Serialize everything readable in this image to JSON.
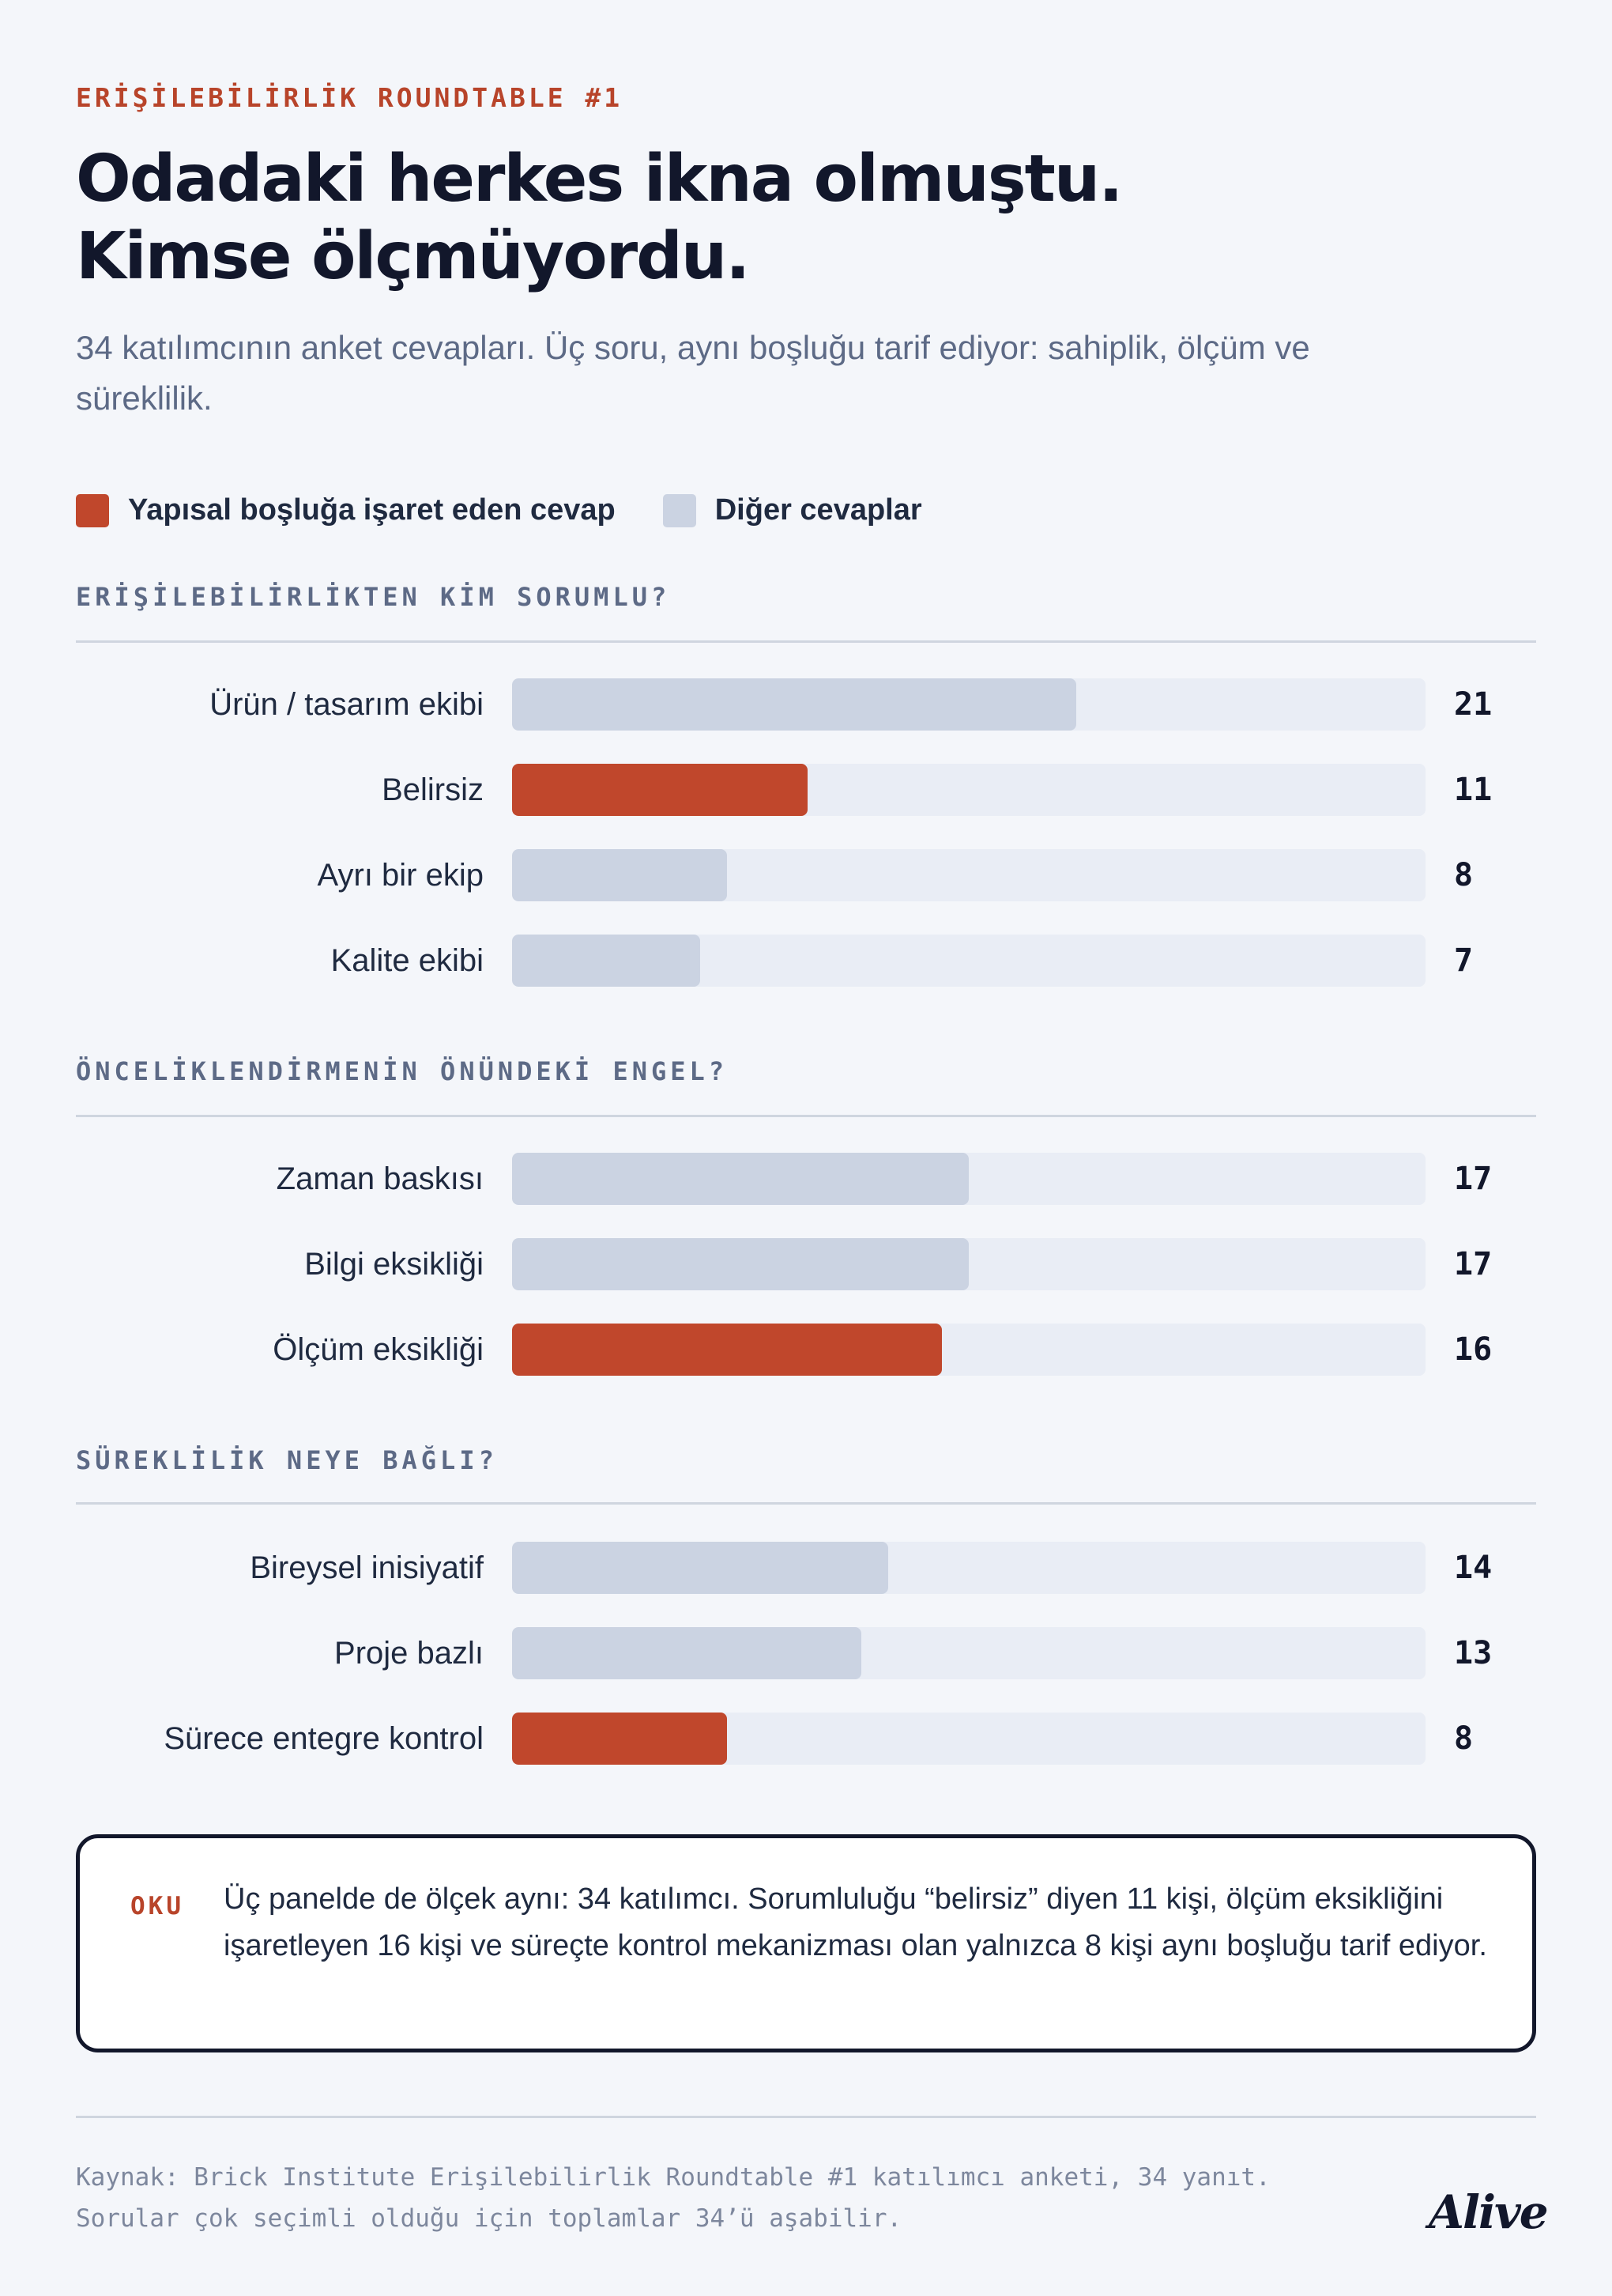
{
  "eyebrow": "ERİŞİLEBİLİRLİK ROUNDTABLE #1",
  "headline": [
    "Odadaki herkes ikna olmuştu.",
    "Kimse ölçmüyordu."
  ],
  "subtitle": "34 katılımcının anket cevapları. Üç soru, aynı boşluğu tarif ediyor: sahiplik, ölçüm ve süreklilik.",
  "legend": {
    "highlight": "Yapısal boşluğa işaret eden cevap",
    "other": "Diğer cevaplar"
  },
  "colors": {
    "highlight": "#c0472c",
    "other": "#cbd3e2",
    "track": "#e9edf5"
  },
  "chart_data": {
    "type": "bar",
    "orientation": "horizontal",
    "scale_max": 34,
    "panels": [
      {
        "title": "ERİŞİLEBİLİRLİKTEN KİM SORUMLU?",
        "categories": [
          "Ürün / tasarım ekibi",
          "Belirsiz",
          "Ayrı bir ekip",
          "Kalite ekibi"
        ],
        "values": [
          21,
          11,
          8,
          7
        ],
        "highlight": [
          false,
          true,
          false,
          false
        ]
      },
      {
        "title": "ÖNCELİKLENDİRMENİN ÖNÜNDEKİ ENGEL?",
        "categories": [
          "Zaman baskısı",
          "Bilgi eksikliği",
          "Ölçüm eksikliği"
        ],
        "values": [
          17,
          17,
          16
        ],
        "highlight": [
          false,
          false,
          true
        ]
      },
      {
        "title": "SÜREKLİLİK NEYE BAĞLI?",
        "categories": [
          "Bireysel inisiyatif",
          "Proje bazlı",
          "Sürece entegre kontrol"
        ],
        "values": [
          14,
          13,
          8
        ],
        "highlight": [
          false,
          false,
          true
        ]
      }
    ]
  },
  "note": {
    "tag": "OKU",
    "text": "Üç panelde de ölçek aynı: 34 katılımcı. Sorumluluğu “belirsiz” diyen 11 kişi, ölçüm eksikliğini işaretleyen 16 kişi ve süreçte kontrol mekanizması olan yalnızca 8 kişi aynı boşluğu tarif ediyor."
  },
  "source": "Kaynak: Brick Institute Erişilebilirlik Roundtable #1 katılımcı anketi, 34 yanıt. Sorular çok seçimli olduğu için toplamlar 34’ü aşabilir.",
  "logo": "Alive"
}
